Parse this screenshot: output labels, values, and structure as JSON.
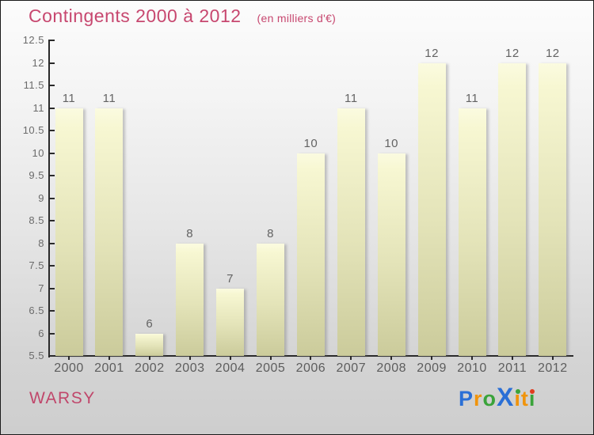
{
  "header": {
    "title": "Contingents 2000 à 2012",
    "subtitle": "(en milliers d'€)",
    "title_color": "#c7476f"
  },
  "chart_data": {
    "type": "bar",
    "title": "Contingents 2000 à 2012",
    "subtitle": "(en milliers d'€)",
    "categories": [
      "2000",
      "2001",
      "2002",
      "2003",
      "2004",
      "2005",
      "2006",
      "2007",
      "2008",
      "2009",
      "2010",
      "2011",
      "2012"
    ],
    "values": [
      11,
      11,
      6,
      8,
      7,
      8,
      10,
      11,
      10,
      12,
      11,
      12,
      12
    ],
    "xlabel": "",
    "ylabel": "",
    "ylim": [
      5.5,
      12.5
    ],
    "ytick_step": 0.5,
    "grid": false,
    "legend": "none",
    "bar_color_top": "#f8f8d6",
    "bar_color_bottom": "#cbcb9b",
    "axis_color": "#2a2a2a",
    "label_color": "#636363"
  },
  "footer": {
    "brand": "WARSY",
    "brand_color": "#c0476b",
    "logo_name": "Proxiti",
    "logo_letters": [
      {
        "char": "P",
        "color": "#2a6fd6"
      },
      {
        "char": "r",
        "color": "#f0940c"
      },
      {
        "char": "o",
        "color": "#3aa33a"
      },
      {
        "char": "X",
        "color": "#2a6fd6",
        "big": true
      },
      {
        "char": "ı",
        "color": "#f0940c",
        "dot": "#3aa33a"
      },
      {
        "char": "t",
        "color": "#f0940c"
      },
      {
        "char": "ı",
        "color": "#3aa33a",
        "dot": "#e03c1f"
      }
    ]
  }
}
